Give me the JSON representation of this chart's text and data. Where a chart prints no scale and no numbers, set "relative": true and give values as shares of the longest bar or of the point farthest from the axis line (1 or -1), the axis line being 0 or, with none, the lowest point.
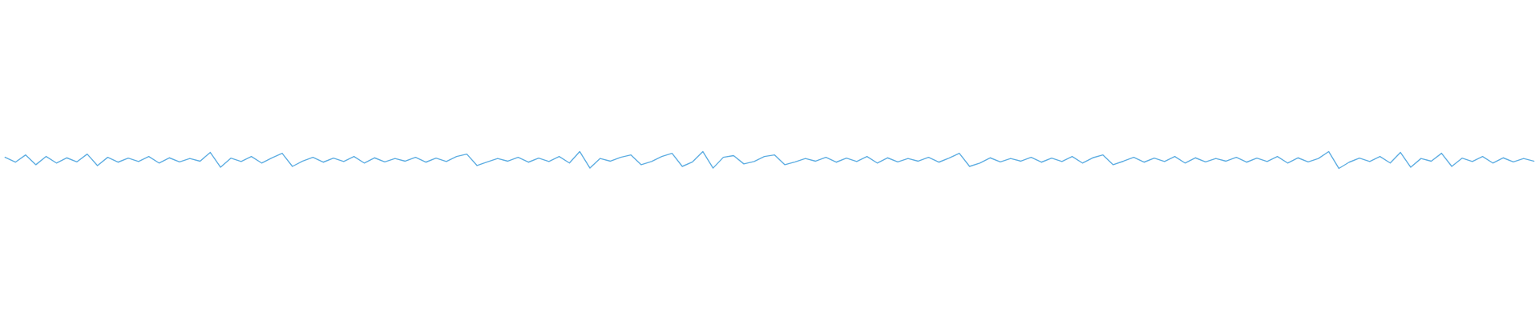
{
  "chart_data": {
    "type": "line",
    "relative": true,
    "color": "#5dade2",
    "categories": [
      null,
      null,
      null,
      null,
      null,
      null,
      null,
      null,
      null,
      null,
      null,
      null,
      null,
      null,
      null,
      null,
      null,
      null,
      null,
      null,
      null,
      null,
      null,
      null,
      null,
      null,
      null,
      null,
      null,
      null,
      null,
      null,
      null,
      null,
      null,
      null,
      null,
      null,
      null,
      null,
      null,
      null,
      null,
      null,
      null,
      null,
      null,
      null,
      null,
      null,
      null,
      null,
      null,
      null,
      null,
      null,
      null,
      null,
      null,
      null,
      null,
      null,
      null,
      null,
      null,
      null,
      null,
      null,
      null,
      null,
      null,
      null,
      null,
      null,
      null,
      null,
      null,
      null,
      null,
      null,
      null,
      null,
      null,
      null,
      null,
      null,
      null,
      null,
      null,
      null,
      null,
      null,
      null,
      null,
      null,
      null,
      null,
      null,
      null,
      null,
      null,
      null,
      null,
      null,
      null,
      null,
      null,
      null,
      null,
      null,
      null,
      null,
      null,
      null,
      null,
      null,
      null,
      null,
      null,
      null,
      null,
      null,
      null,
      null,
      null,
      null,
      null,
      null,
      null,
      null,
      null,
      null,
      null,
      null,
      null,
      null,
      null,
      null,
      null,
      null,
      null,
      null,
      null,
      null,
      null,
      null,
      null,
      null,
      null,
      null
    ],
    "values": [
      0.66,
      0.37,
      0.8,
      0.22,
      0.71,
      0.32,
      0.63,
      0.39,
      0.85,
      0.17,
      0.66,
      0.37,
      0.61,
      0.41,
      0.71,
      0.32,
      0.63,
      0.39,
      0.59,
      0.43,
      0.95,
      0.07,
      0.61,
      0.41,
      0.71,
      0.32,
      0.63,
      0.9,
      0.12,
      0.43,
      0.66,
      0.37,
      0.61,
      0.41,
      0.71,
      0.32,
      0.63,
      0.39,
      0.59,
      0.43,
      0.66,
      0.37,
      0.61,
      0.41,
      0.71,
      0.85,
      0.17,
      0.39,
      0.59,
      0.43,
      0.66,
      0.37,
      0.61,
      0.41,
      0.71,
      0.32,
      1.0,
      0.02,
      0.59,
      0.43,
      0.66,
      0.8,
      0.22,
      0.41,
      0.71,
      0.9,
      0.12,
      0.39,
      1.0,
      0.02,
      0.66,
      0.76,
      0.27,
      0.41,
      0.71,
      0.8,
      0.22,
      0.39,
      0.59,
      0.43,
      0.66,
      0.37,
      0.61,
      0.41,
      0.71,
      0.32,
      0.63,
      0.39,
      0.59,
      0.43,
      0.66,
      0.37,
      0.61,
      0.9,
      0.12,
      0.32,
      0.63,
      0.39,
      0.59,
      0.43,
      0.66,
      0.37,
      0.61,
      0.41,
      0.71,
      0.32,
      0.63,
      0.8,
      0.22,
      0.43,
      0.66,
      0.37,
      0.61,
      0.41,
      0.71,
      0.32,
      0.63,
      0.39,
      0.59,
      0.43,
      0.66,
      0.37,
      0.61,
      0.41,
      0.71,
      0.32,
      0.63,
      0.39,
      0.59,
      1.0,
      0.0,
      0.37,
      0.61,
      0.41,
      0.71,
      0.32,
      0.95,
      0.07,
      0.59,
      0.43,
      0.9,
      0.12,
      0.61,
      0.41,
      0.71,
      0.32,
      0.63,
      0.39,
      0.59,
      0.43
    ]
  }
}
